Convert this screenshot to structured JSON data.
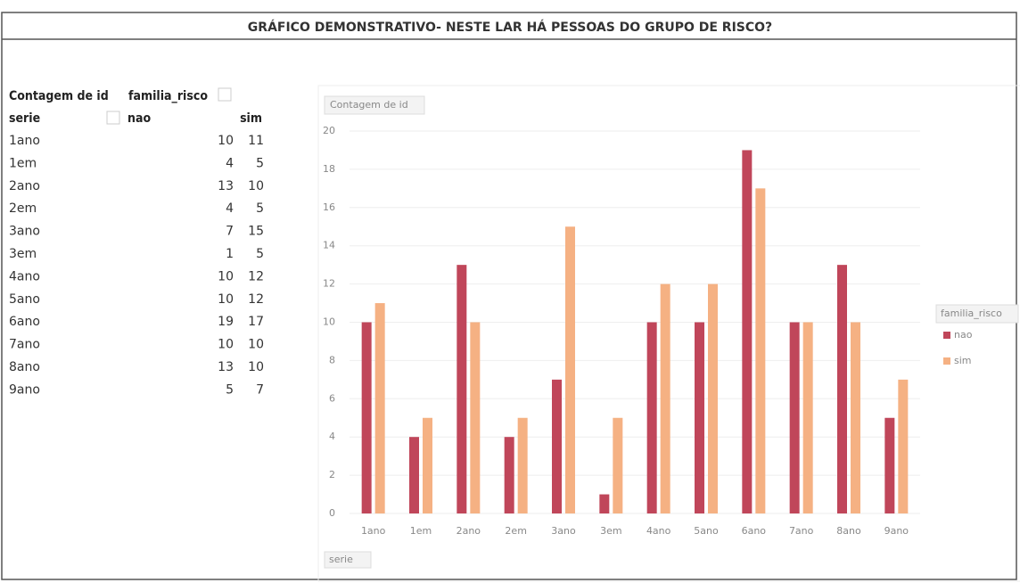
{
  "title": "GRÁFICO DEMONSTRATIVO- NESTE LAR HÁ PESSOAS DO GRUPO DE RISCO?",
  "table": {
    "header": [
      [
        "Contagem de id",
        "familia_risco"
      ],
      [
        "serie",
        "nao",
        "sim"
      ]
    ],
    "rows": [
      [
        "1ano",
        10,
        11
      ],
      [
        "1em",
        4,
        5
      ],
      [
        "2ano",
        13,
        10
      ],
      [
        "2em",
        4,
        5
      ],
      [
        "3ano",
        7,
        15
      ],
      [
        "3em",
        1,
        5
      ],
      [
        "4ano",
        10,
        12
      ],
      [
        "5ano",
        10,
        12
      ],
      [
        "6ano",
        19,
        17
      ],
      [
        "7ano",
        10,
        10
      ],
      [
        "8ano",
        13,
        10
      ],
      [
        "9ano",
        5,
        7
      ]
    ]
  },
  "chart_data": {
    "type": "bar",
    "y_label": "Contagem de id",
    "x_field": "serie",
    "legend_title": "familia_risco",
    "legend": "right",
    "grid": true,
    "categories": [
      "1ano",
      "1em",
      "2ano",
      "2em",
      "3ano",
      "3em",
      "4ano",
      "5ano",
      "6ano",
      "7ano",
      "8ano",
      "9ano"
    ],
    "series": [
      {
        "name": "nao",
        "color": "#c0465a",
        "values": [
          10,
          4,
          13,
          4,
          7,
          1,
          10,
          10,
          19,
          10,
          13,
          5
        ]
      },
      {
        "name": "sim",
        "color": "#f5b183",
        "values": [
          11,
          5,
          10,
          5,
          15,
          5,
          12,
          12,
          17,
          10,
          10,
          7
        ]
      }
    ],
    "ylim": [
      0,
      20
    ],
    "yticks": [
      0,
      2,
      4,
      6,
      8,
      10,
      12,
      14,
      16,
      18,
      20
    ]
  }
}
